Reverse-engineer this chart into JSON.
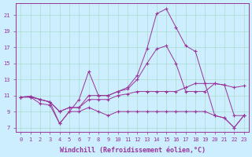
{
  "xlabel": "Windchill (Refroidissement éolien,°C)",
  "background_color": "#cceeff",
  "grid_color": "#aaddcc",
  "line_color": "#993399",
  "x": [
    0,
    1,
    2,
    3,
    4,
    5,
    6,
    7,
    8,
    9,
    10,
    11,
    12,
    13,
    14,
    15,
    16,
    17,
    18,
    19,
    20,
    21,
    22,
    23
  ],
  "series": [
    [
      10.8,
      10.9,
      10.5,
      10.2,
      7.5,
      9.0,
      10.5,
      14.0,
      11.0,
      11.0,
      11.5,
      12.0,
      13.5,
      16.8,
      21.2,
      21.8,
      19.5,
      17.2,
      16.5,
      12.5,
      12.5,
      12.3,
      12.0,
      12.2
    ],
    [
      10.8,
      10.9,
      10.5,
      10.2,
      9.0,
      9.5,
      9.5,
      11.0,
      11.0,
      11.0,
      11.5,
      11.8,
      13.0,
      15.0,
      16.8,
      17.2,
      15.0,
      11.5,
      11.5,
      11.5,
      12.5,
      12.3,
      8.5,
      8.5
    ],
    [
      10.8,
      10.8,
      10.5,
      10.2,
      9.0,
      9.5,
      9.5,
      10.5,
      10.5,
      10.5,
      11.0,
      11.2,
      11.5,
      11.5,
      11.5,
      11.5,
      11.5,
      12.0,
      12.5,
      12.5,
      8.5,
      8.2,
      7.0,
      8.5
    ],
    [
      10.8,
      10.8,
      10.0,
      9.8,
      7.5,
      9.0,
      9.0,
      9.5,
      9.0,
      8.5,
      9.0,
      9.0,
      9.0,
      9.0,
      9.0,
      9.0,
      9.0,
      9.0,
      9.0,
      9.0,
      8.5,
      8.2,
      7.0,
      8.5
    ]
  ],
  "ylim": [
    6.5,
    22.5
  ],
  "xlim": [
    -0.5,
    23.5
  ],
  "yticks": [
    7,
    9,
    11,
    13,
    15,
    17,
    19,
    21
  ],
  "xticks": [
    0,
    1,
    2,
    3,
    4,
    5,
    6,
    7,
    8,
    9,
    10,
    11,
    12,
    13,
    14,
    15,
    16,
    17,
    18,
    19,
    20,
    21,
    22,
    23
  ],
  "tick_fontsize": 5.0,
  "xlabel_fontsize": 6.0,
  "marker": "+",
  "markersize": 3.5,
  "linewidth": 0.7
}
